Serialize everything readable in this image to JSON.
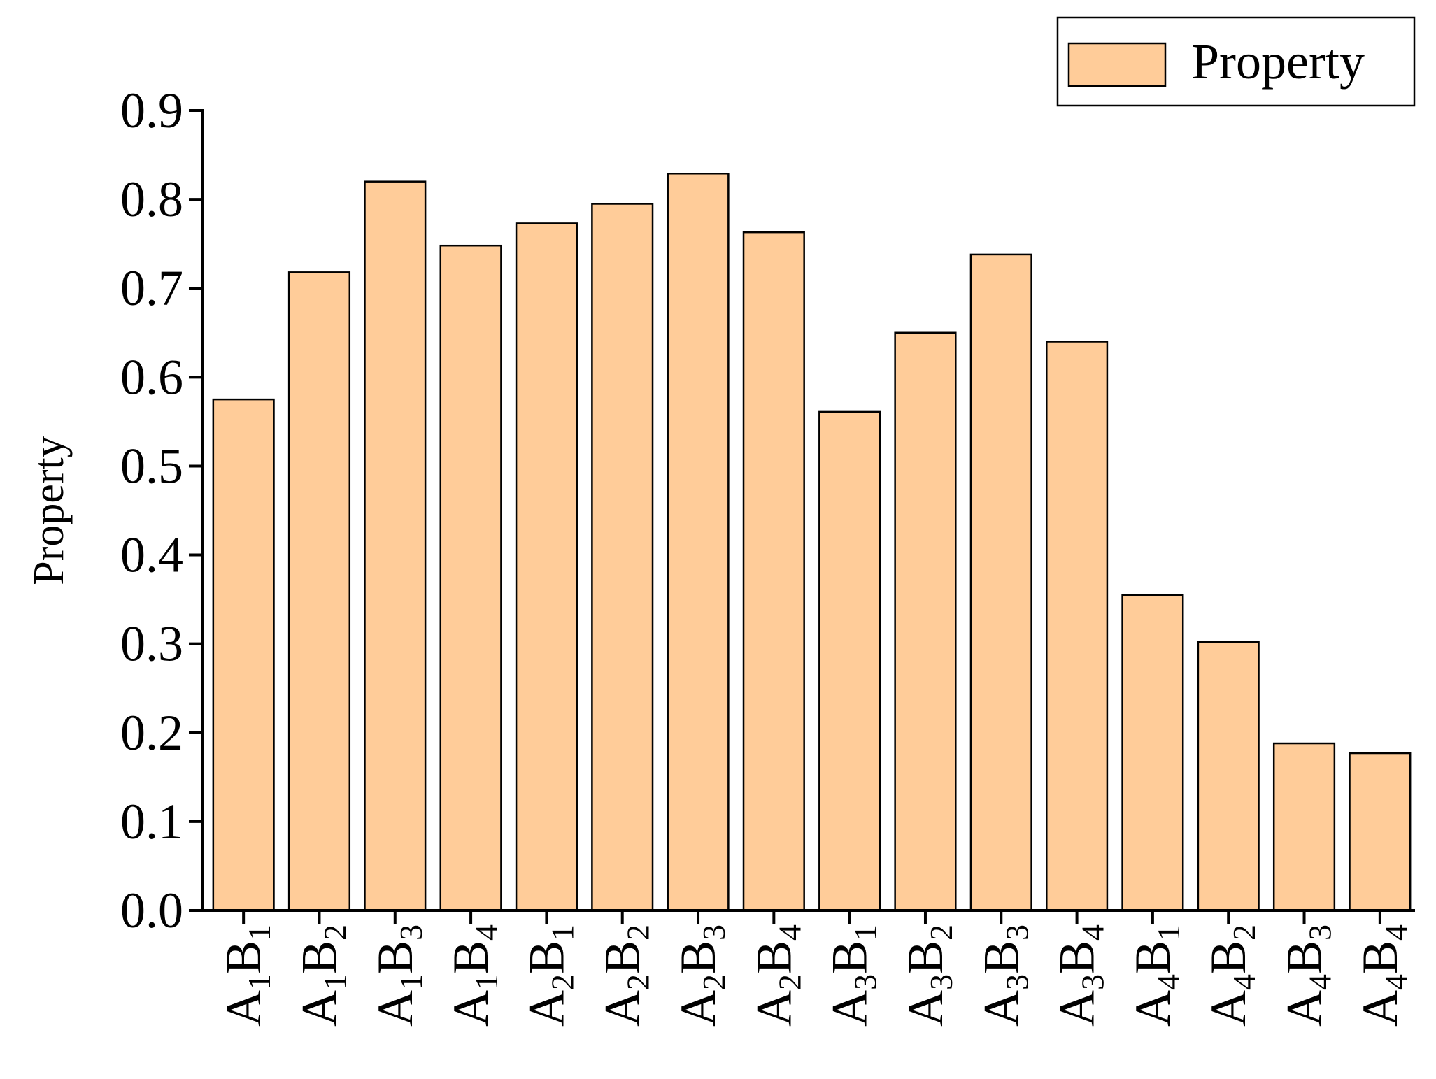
{
  "chart_data": {
    "type": "bar",
    "categories": [
      {
        "a": "A",
        "a_sub": "1",
        "b": "B",
        "b_sub": "1"
      },
      {
        "a": "A",
        "a_sub": "1",
        "b": "B",
        "b_sub": "2"
      },
      {
        "a": "A",
        "a_sub": "1",
        "b": "B",
        "b_sub": "3"
      },
      {
        "a": "A",
        "a_sub": "1",
        "b": "B",
        "b_sub": "4"
      },
      {
        "a": "A",
        "a_sub": "2",
        "b": "B",
        "b_sub": "1"
      },
      {
        "a": "A",
        "a_sub": "2",
        "b": "B",
        "b_sub": "2"
      },
      {
        "a": "A",
        "a_sub": "2",
        "b": "B",
        "b_sub": "3"
      },
      {
        "a": "A",
        "a_sub": "2",
        "b": "B",
        "b_sub": "4"
      },
      {
        "a": "A",
        "a_sub": "3",
        "b": "B",
        "b_sub": "1"
      },
      {
        "a": "A",
        "a_sub": "3",
        "b": "B",
        "b_sub": "2"
      },
      {
        "a": "A",
        "a_sub": "3",
        "b": "B",
        "b_sub": "3"
      },
      {
        "a": "A",
        "a_sub": "3",
        "b": "B",
        "b_sub": "4"
      },
      {
        "a": "A",
        "a_sub": "4",
        "b": "B",
        "b_sub": "1"
      },
      {
        "a": "A",
        "a_sub": "4",
        "b": "B",
        "b_sub": "2"
      },
      {
        "a": "A",
        "a_sub": "4",
        "b": "B",
        "b_sub": "3"
      },
      {
        "a": "A",
        "a_sub": "4",
        "b": "B",
        "b_sub": "4"
      }
    ],
    "series": [
      {
        "name": "Property",
        "values": [
          0.575,
          0.718,
          0.82,
          0.748,
          0.773,
          0.795,
          0.829,
          0.763,
          0.561,
          0.65,
          0.738,
          0.64,
          0.355,
          0.302,
          0.188,
          0.177
        ]
      }
    ],
    "ylabel": "Property",
    "xlabel": "",
    "title": "",
    "ylim": [
      0,
      0.9
    ],
    "yticks": [
      "0.0",
      "0.1",
      "0.2",
      "0.3",
      "0.4",
      "0.5",
      "0.6",
      "0.7",
      "0.8",
      "0.9"
    ],
    "grid": false,
    "legend_position": "top-right",
    "colors": {
      "bar_fill": "#FFCC99",
      "bar_stroke": "#000000",
      "axis": "#000000"
    }
  }
}
